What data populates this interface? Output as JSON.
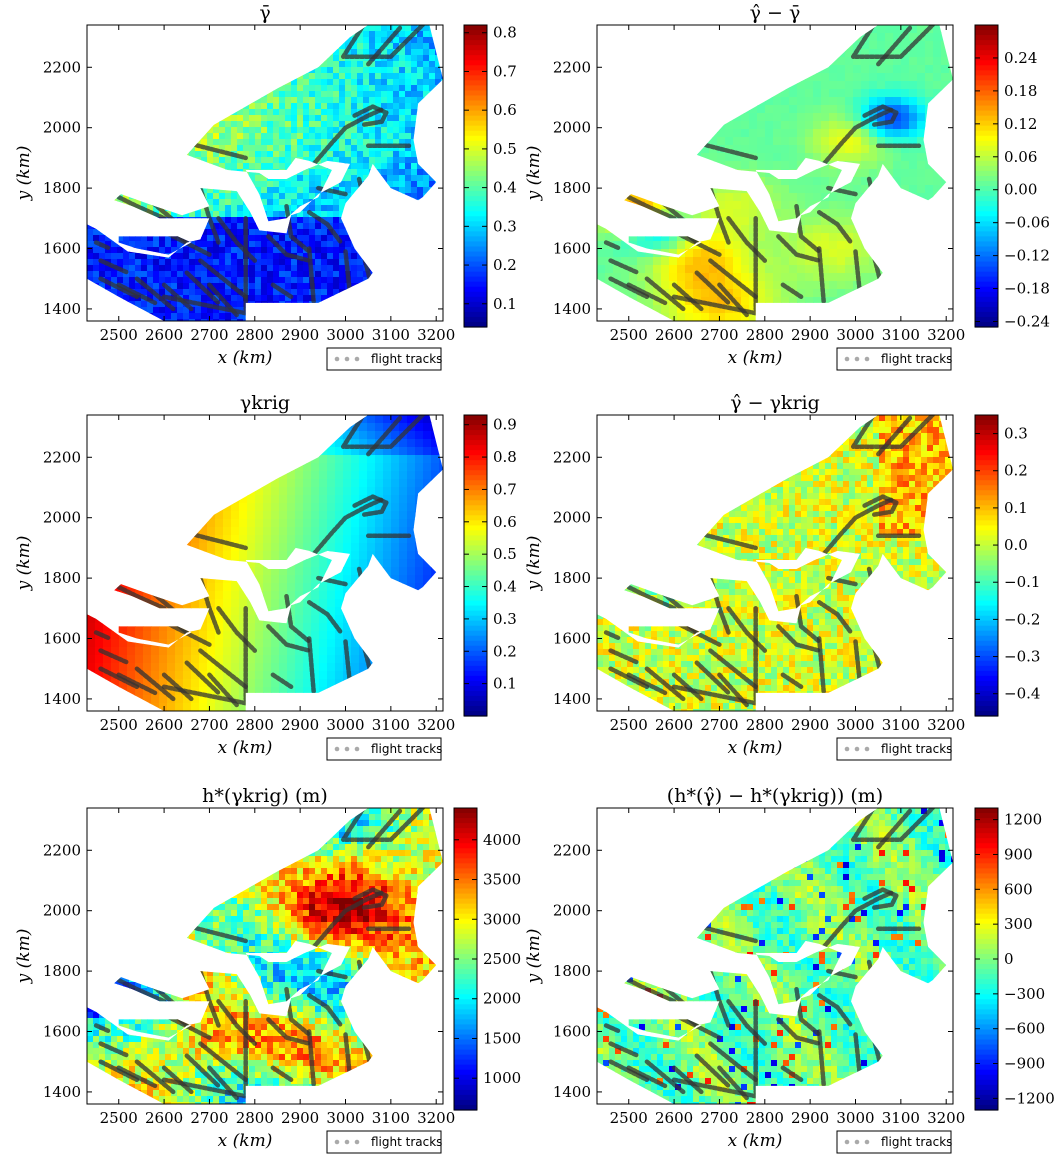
{
  "figure": {
    "legend_label": "flight tracks",
    "colormap": [
      "#00007f",
      "#0000ff",
      "#007fff",
      "#00ffff",
      "#7fff7f",
      "#ffff00",
      "#ff7f00",
      "#ff0000",
      "#7f0000"
    ],
    "track_color": "#333333",
    "legend_marker_color": "#aaaaaa"
  },
  "chart_data": [
    {
      "type": "heatmap",
      "title": "γ̄",
      "xlabel": "x (km)",
      "ylabel": "y (km)",
      "xlim": [
        2430,
        3215
      ],
      "ylim": [
        1360,
        2340
      ],
      "xticks": [
        2500,
        2600,
        2700,
        2800,
        2900,
        3000,
        3100,
        3200
      ],
      "yticks": [
        1400,
        1600,
        1800,
        2000,
        2200
      ],
      "colorbar": {
        "min": 0.04,
        "max": 0.82,
        "ticks": [
          "0.1",
          "0.2",
          "0.3",
          "0.4",
          "0.5",
          "0.6",
          "0.7",
          "0.8"
        ],
        "tick_values": [
          0.1,
          0.2,
          0.3,
          0.4,
          0.5,
          0.6,
          0.7,
          0.8
        ]
      },
      "legend": "flight tracks",
      "field": "gbar"
    },
    {
      "type": "heatmap",
      "title": "γ̂ − γ̄",
      "xlabel": "x (km)",
      "ylabel": "y (km)",
      "xlim": [
        2430,
        3215
      ],
      "ylim": [
        1360,
        2340
      ],
      "xticks": [
        2500,
        2600,
        2700,
        2800,
        2900,
        3000,
        3100,
        3200
      ],
      "yticks": [
        1400,
        1600,
        1800,
        2000,
        2200
      ],
      "colorbar": {
        "min": -0.25,
        "max": 0.3,
        "ticks": [
          "0.24",
          "0.18",
          "0.12",
          "0.06",
          "0.00",
          "−0.06",
          "−0.12",
          "−0.18",
          "−0.24"
        ],
        "tick_values": [
          0.24,
          0.18,
          0.12,
          0.06,
          0.0,
          -0.06,
          -0.12,
          -0.18,
          -0.24
        ]
      },
      "legend": "flight tracks",
      "field": "diff_smooth"
    },
    {
      "type": "heatmap",
      "title": "γkrig",
      "xlabel": "x (km)",
      "ylabel": "y (km)",
      "xlim": [
        2430,
        3215
      ],
      "ylim": [
        1360,
        2340
      ],
      "xticks": [
        2500,
        2600,
        2700,
        2800,
        2900,
        3000,
        3100,
        3200
      ],
      "yticks": [
        1400,
        1600,
        1800,
        2000,
        2200
      ],
      "colorbar": {
        "min": 0.0,
        "max": 0.93,
        "ticks": [
          "0.9",
          "0.8",
          "0.7",
          "0.6",
          "0.5",
          "0.4",
          "0.3",
          "0.2",
          "0.1"
        ],
        "tick_values": [
          0.9,
          0.8,
          0.7,
          0.6,
          0.5,
          0.4,
          0.3,
          0.2,
          0.1
        ]
      },
      "legend": "flight tracks",
      "field": "krig"
    },
    {
      "type": "heatmap",
      "title": "γ̂ − γkrig",
      "xlabel": "x (km)",
      "ylabel": "y (km)",
      "xlim": [
        2430,
        3215
      ],
      "ylim": [
        1360,
        2340
      ],
      "xticks": [
        2500,
        2600,
        2700,
        2800,
        2900,
        3000,
        3100,
        3200
      ],
      "yticks": [
        1400,
        1600,
        1800,
        2000,
        2200
      ],
      "colorbar": {
        "min": -0.46,
        "max": 0.35,
        "ticks": [
          "0.3",
          "0.2",
          "0.1",
          "0.0",
          "−0.1",
          "−0.2",
          "−0.3",
          "−0.4"
        ],
        "tick_values": [
          0.3,
          0.2,
          0.1,
          0.0,
          -0.1,
          -0.2,
          -0.3,
          -0.4
        ]
      },
      "legend": "flight tracks",
      "field": "diff_noise"
    },
    {
      "type": "heatmap",
      "title": "h*(γkrig) (m)",
      "xlabel": "x (km)",
      "ylabel": "y (km)",
      "xlim": [
        2430,
        3215
      ],
      "ylim": [
        1360,
        2340
      ],
      "xticks": [
        2500,
        2600,
        2700,
        2800,
        2900,
        3000,
        3100,
        3200
      ],
      "yticks": [
        1400,
        1600,
        1800,
        2000,
        2200
      ],
      "colorbar": {
        "min": 600,
        "max": 4400,
        "ticks": [
          "4000",
          "3500",
          "3000",
          "2500",
          "2000",
          "1500",
          "1000"
        ],
        "tick_values": [
          4000,
          3500,
          3000,
          2500,
          2000,
          1500,
          1000
        ]
      },
      "legend": "flight tracks",
      "field": "height"
    },
    {
      "type": "heatmap",
      "title": "(h*(γ̂) − h*(γkrig)) (m)",
      "xlabel": "x (km)",
      "ylabel": "y (km)",
      "xlim": [
        2430,
        3215
      ],
      "ylim": [
        1360,
        2340
      ],
      "xticks": [
        2500,
        2600,
        2700,
        2800,
        2900,
        3000,
        3100,
        3200
      ],
      "yticks": [
        1400,
        1600,
        1800,
        2000,
        2200
      ],
      "colorbar": {
        "min": -1300,
        "max": 1300,
        "ticks": [
          "1200",
          "900",
          "600",
          "300",
          "0",
          "−300",
          "−600",
          "−900",
          "−1200"
        ],
        "tick_values": [
          1200,
          900,
          600,
          300,
          0,
          -300,
          -600,
          -900,
          -1200
        ]
      },
      "legend": "flight tracks",
      "field": "height_diff"
    }
  ]
}
